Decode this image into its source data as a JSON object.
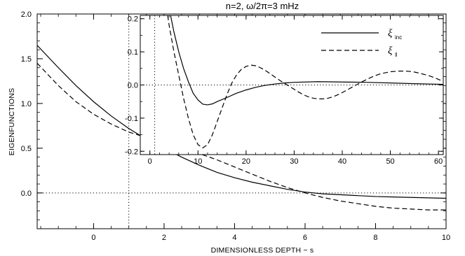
{
  "chart_data": [
    {
      "id": "main",
      "type": "line",
      "title": "n=2, ω/2π=3 mHz",
      "xlabel": "DIMENSIONLESS DEPTH − s",
      "ylabel": "EIGENFUNCTIONS",
      "xlim": [
        -1.6,
        10
      ],
      "ylim": [
        -0.4,
        2.0
      ],
      "xticks": [
        0,
        2,
        4,
        6,
        8,
        10
      ],
      "xtick_labels": [
        "0",
        "2",
        "4",
        "6",
        "8",
        "10"
      ],
      "yticks": [
        0.0,
        0.5,
        1.0,
        1.5,
        2.0
      ],
      "ytick_labels": [
        "0.0",
        "0.5",
        "1.0",
        "1.5",
        "2.0"
      ],
      "reference_lines": [
        {
          "orientation": "horizontal",
          "y": 0.0,
          "style": "dotted"
        },
        {
          "orientation": "vertical",
          "x": 1.0,
          "style": "dotted"
        }
      ],
      "series": [
        {
          "style": "solid",
          "x": [
            -1.6,
            -1.0,
            -0.5,
            0.0,
            0.5,
            1.0,
            1.5,
            2.0,
            2.5,
            3.0,
            3.5,
            4.0,
            4.5,
            5.0,
            5.5,
            6.0,
            6.5,
            7.0,
            7.5,
            8.0,
            8.5,
            9.0,
            9.5,
            10.0
          ],
          "y": [
            1.65,
            1.4,
            1.2,
            1.02,
            0.86,
            0.72,
            0.6,
            0.5,
            0.4,
            0.31,
            0.23,
            0.17,
            0.12,
            0.08,
            0.04,
            0.01,
            -0.01,
            -0.02,
            -0.03,
            -0.04,
            -0.045,
            -0.05,
            -0.055,
            -0.06
          ]
        },
        {
          "style": "dashed",
          "x": [
            -1.6,
            -1.0,
            -0.5,
            0.0,
            0.5,
            1.0,
            1.5,
            2.0,
            2.5,
            3.0,
            3.5,
            4.0,
            4.5,
            5.0,
            5.5,
            6.0,
            6.5,
            7.0,
            7.5,
            8.0,
            8.5,
            9.0,
            9.5,
            10.0
          ],
          "y": [
            1.45,
            1.2,
            1.02,
            0.88,
            0.77,
            0.68,
            0.62,
            0.57,
            0.51,
            0.44,
            0.37,
            0.29,
            0.21,
            0.13,
            0.06,
            0.0,
            -0.05,
            -0.09,
            -0.12,
            -0.15,
            -0.17,
            -0.18,
            -0.19,
            -0.19
          ]
        }
      ]
    },
    {
      "id": "inset",
      "type": "line",
      "xlim": [
        -2,
        61
      ],
      "ylim": [
        -0.21,
        0.21
      ],
      "xticks": [
        0,
        10,
        20,
        30,
        40,
        50,
        60
      ],
      "xtick_labels": [
        "0",
        "10",
        "20",
        "30",
        "40",
        "50",
        "60"
      ],
      "yticks": [
        -0.2,
        -0.1,
        0.0,
        0.1,
        0.2
      ],
      "ytick_labels": [
        "-0.2",
        "-0.1",
        "0.0",
        "0.1",
        "0.2"
      ],
      "reference_lines": [
        {
          "orientation": "horizontal",
          "y": 0.0,
          "style": "dotted"
        },
        {
          "orientation": "vertical",
          "x": 1.0,
          "style": "dotted"
        }
      ],
      "legend": {
        "placement": "top-right",
        "entries": [
          {
            "style": "solid",
            "symbol": "ξ",
            "subscript": "inc"
          },
          {
            "style": "dashed",
            "symbol": "ξ",
            "subscript": "‖"
          }
        ]
      },
      "series": [
        {
          "style": "solid",
          "x": [
            4.3,
            5,
            6,
            7,
            8,
            9,
            10,
            11,
            12,
            13,
            14,
            16,
            18,
            20,
            22,
            24,
            26,
            28,
            30,
            35,
            40,
            45,
            50,
            55,
            61
          ],
          "y": [
            0.21,
            0.16,
            0.1,
            0.05,
            0.01,
            -0.025,
            -0.045,
            -0.058,
            -0.06,
            -0.057,
            -0.05,
            -0.038,
            -0.025,
            -0.015,
            -0.007,
            -0.001,
            0.003,
            0.006,
            0.008,
            0.01,
            0.009,
            0.008,
            0.006,
            0.004,
            0.002
          ]
        },
        {
          "style": "dashed",
          "x": [
            3.7,
            4,
            5,
            6,
            7,
            8,
            9,
            10,
            11,
            12,
            13,
            14,
            15,
            16,
            17,
            18,
            19,
            20,
            21,
            22,
            23,
            24,
            25,
            26,
            27,
            28,
            29,
            30,
            31,
            32,
            33,
            34,
            35,
            36,
            37,
            38,
            39,
            40,
            41,
            42,
            43,
            44,
            45,
            46,
            47,
            48,
            49,
            50,
            51,
            52,
            53,
            54,
            55,
            56,
            57,
            58,
            59,
            60,
            61
          ],
          "y": [
            0.21,
            0.18,
            0.1,
            0.03,
            -0.04,
            -0.1,
            -0.15,
            -0.18,
            -0.19,
            -0.18,
            -0.15,
            -0.11,
            -0.07,
            -0.03,
            0.005,
            0.03,
            0.047,
            0.056,
            0.06,
            0.058,
            0.052,
            0.044,
            0.034,
            0.024,
            0.014,
            0.005,
            -0.004,
            -0.013,
            -0.022,
            -0.03,
            -0.036,
            -0.04,
            -0.042,
            -0.042,
            -0.04,
            -0.036,
            -0.03,
            -0.023,
            -0.015,
            -0.007,
            0.001,
            0.009,
            0.016,
            0.023,
            0.029,
            0.034,
            0.037,
            0.04,
            0.041,
            0.042,
            0.042,
            0.041,
            0.039,
            0.036,
            0.032,
            0.028,
            0.023,
            0.017,
            0.011
          ]
        }
      ]
    }
  ]
}
